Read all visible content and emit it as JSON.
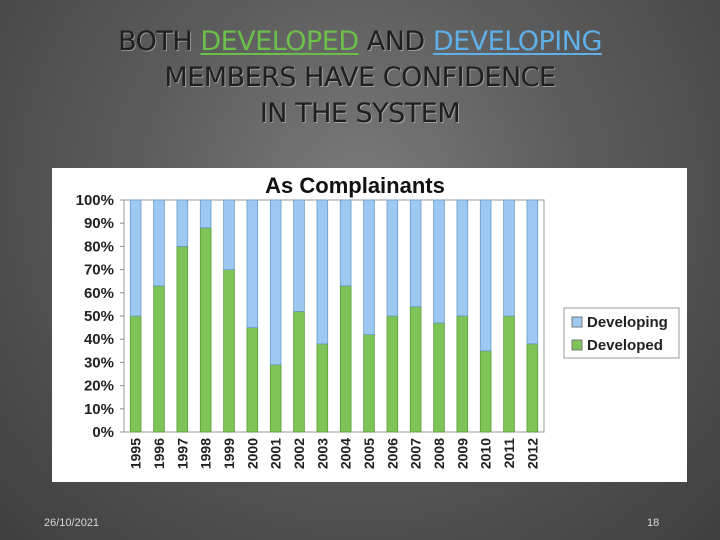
{
  "slide": {
    "title_line1": {
      "w1": "BOTH",
      "w2": "DEVELOPED",
      "w3": "AND",
      "w4": "DEVELOPING"
    },
    "title_line2": "MEMBERS HAVE CONFIDENCE",
    "title_line3": "IN THE SYSTEM",
    "footer_date": "26/10/2021",
    "page_number": "18",
    "colors": {
      "developing": "#9cc8f2",
      "developed": "#7fc456",
      "highlight_developed": "#6cc04a",
      "highlight_developing": "#5fb0e8"
    }
  },
  "chart_data": {
    "type": "bar",
    "stacked": true,
    "percent": true,
    "title": "As Complainants",
    "categories": [
      "1995",
      "1996",
      "1997",
      "1998",
      "1999",
      "2000",
      "2001",
      "2002",
      "2003",
      "2004",
      "2005",
      "2006",
      "2007",
      "2008",
      "2009",
      "2010",
      "2011",
      "2012"
    ],
    "series": [
      {
        "name": "Developed",
        "color": "#7fc456",
        "values": [
          50,
          63,
          80,
          88,
          70,
          45,
          29,
          52,
          38,
          63,
          42,
          50,
          54,
          47,
          50,
          35,
          50,
          38
        ]
      },
      {
        "name": "Developing",
        "color": "#9cc8f2",
        "values": [
          50,
          37,
          20,
          12,
          30,
          55,
          71,
          48,
          62,
          37,
          58,
          50,
          46,
          53,
          50,
          65,
          50,
          62
        ]
      }
    ],
    "yticks": [
      "0%",
      "10%",
      "20%",
      "30%",
      "40%",
      "50%",
      "60%",
      "70%",
      "80%",
      "90%",
      "100%"
    ],
    "ylim": [
      0,
      100
    ],
    "grid": false,
    "legend_position": "right",
    "legend": [
      "Developing",
      "Developed"
    ]
  }
}
